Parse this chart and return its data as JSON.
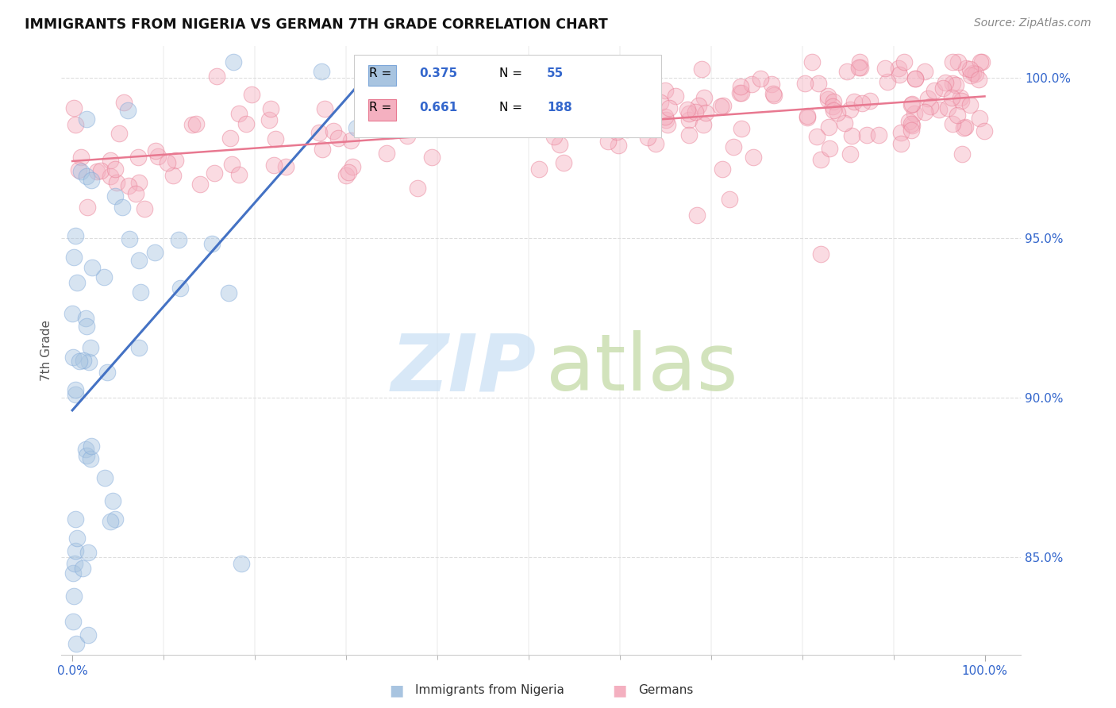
{
  "title": "IMMIGRANTS FROM NIGERIA VS GERMAN 7TH GRADE CORRELATION CHART",
  "source": "Source: ZipAtlas.com",
  "ylabel": "7th Grade",
  "y_tick_values": [
    0.85,
    0.9,
    0.95,
    1.0
  ],
  "nigeria_color": "#a8c4e0",
  "nigeria_edge_color": "#7da7d9",
  "nigeria_line_color": "#4472c4",
  "germany_color": "#f4b0c0",
  "germany_edge_color": "#e87890",
  "germany_line_color": "#e87890",
  "background_color": "#ffffff",
  "grid_color": "#dddddd",
  "title_color": "#111111",
  "source_color": "#888888",
  "tick_color": "#3366cc",
  "ylabel_color": "#555555",
  "legend_R1": "0.375",
  "legend_N1": "55",
  "legend_R2": "0.661",
  "legend_N2": "188",
  "legend_label1": "Immigrants from Nigeria",
  "legend_label2": "Germans",
  "watermark_zip_color": "#c8dff5",
  "watermark_atlas_color": "#c0d8a0"
}
